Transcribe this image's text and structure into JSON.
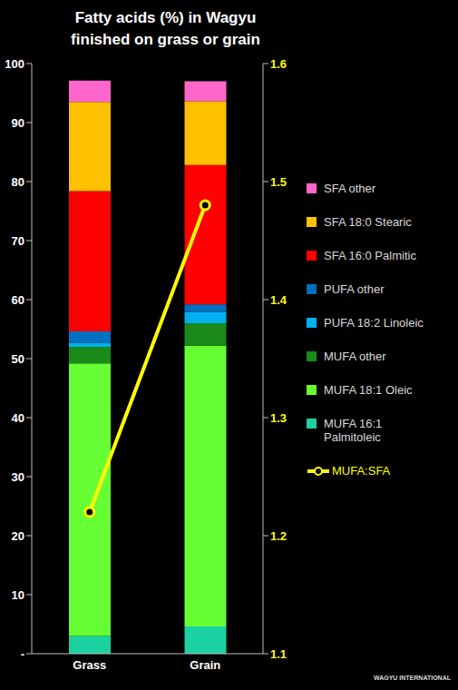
{
  "chart_data": {
    "type": "bar",
    "title": "Fatty acids (%) in Wagyu\nfinished on grass or grain",
    "categories": [
      "Grass",
      "Grain"
    ],
    "stacked": true,
    "ylim": [
      0,
      100
    ],
    "yticks": [
      {
        "value": 0,
        "label": "-"
      },
      10,
      20,
      30,
      40,
      50,
      60,
      70,
      80,
      90,
      100
    ],
    "y2lim": [
      1.1,
      1.6
    ],
    "y2ticks": [
      1.1,
      1.2,
      1.3,
      1.4,
      1.5,
      1.6
    ],
    "grid": false,
    "legend": "right",
    "series": [
      {
        "name": "MUFA 16:1 Palmitoleic",
        "type": "bar",
        "color": "#1bd1a0",
        "values": [
          3.0,
          4.6
        ]
      },
      {
        "name": "MUFA 18:1 Oleic",
        "type": "bar",
        "color": "#66ff33",
        "values": [
          46.2,
          47.6
        ]
      },
      {
        "name": "MUFA other",
        "type": "bar",
        "color": "#1a8a1a",
        "values": [
          2.8,
          3.8
        ]
      },
      {
        "name": "PUFA 18:2 Linoleic",
        "type": "bar",
        "color": "#00b0f0",
        "values": [
          0.7,
          1.9
        ]
      },
      {
        "name": "PUFA other",
        "type": "bar",
        "color": "#0070c0",
        "values": [
          1.9,
          1.3
        ]
      },
      {
        "name": "SFA 16:0 Palmitic",
        "type": "bar",
        "color": "#ff0000",
        "values": [
          23.8,
          23.6
        ]
      },
      {
        "name": "SFA 18:0 Stearic",
        "type": "bar",
        "color": "#ffc000",
        "values": [
          15.1,
          10.8
        ]
      },
      {
        "name": "SFA other",
        "type": "bar",
        "color": "#ff66cc",
        "values": [
          3.6,
          3.4
        ]
      },
      {
        "name": "MUFA:SFA",
        "type": "line",
        "axis": "y2",
        "color": "#ffff00",
        "marker": "circle",
        "values": [
          1.22,
          1.48
        ]
      }
    ],
    "annotations": [
      {
        "text": "WAGYU INTERNATIONAL"
      }
    ]
  }
}
